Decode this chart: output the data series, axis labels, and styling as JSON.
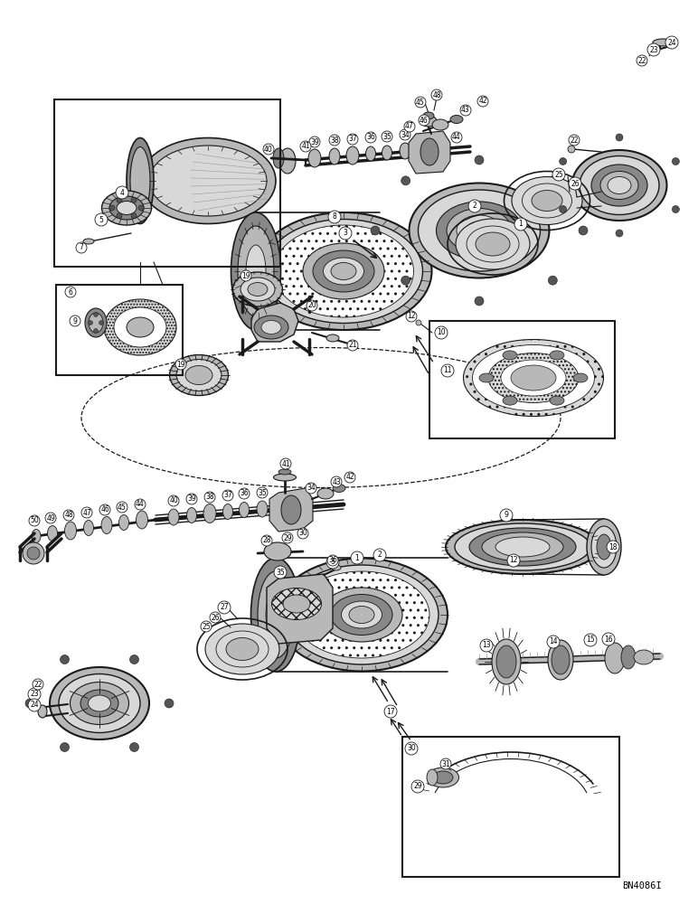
{
  "background_color": "#ffffff",
  "figure_width": 7.72,
  "figure_height": 10.0,
  "dpi": 100,
  "watermark_text": "BN4086I",
  "watermark_fontsize": 7.5,
  "line_color": "#1a1a1a",
  "fill_light": "#d8d8d8",
  "fill_mid": "#b8b8b8",
  "fill_dark": "#888888",
  "fill_vdark": "#555555",
  "hatching_color": "#666666"
}
